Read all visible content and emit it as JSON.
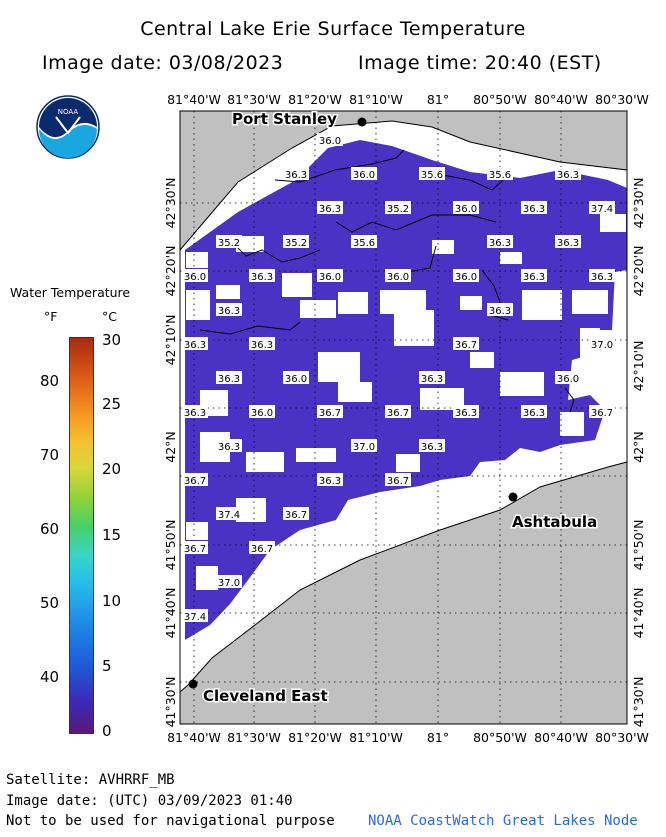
{
  "header": {
    "title": "Central Lake Erie Surface Temperature",
    "image_date": "Image date: 03/08/2023",
    "image_time": "Image time: 20:40 (EST)"
  },
  "logo": {
    "text": "NOAA"
  },
  "legend": {
    "title": "Water Temperature",
    "unit_f": "°F",
    "unit_c": "°C",
    "f_ticks": [
      "80",
      "70",
      "60",
      "50",
      "40"
    ],
    "c_ticks": [
      "30",
      "25",
      "20",
      "15",
      "10",
      "5",
      "0"
    ]
  },
  "map": {
    "lon_labels": [
      "81°40'W",
      "81°30'W",
      "81°20'W",
      "81°10'W",
      "81°",
      "80°50'W",
      "80°40'W",
      "80°30'W"
    ],
    "lat_labels": [
      "42°30'N",
      "42°20'N",
      "42°10'N",
      "42°N",
      "41°50'N",
      "41°40'N",
      "41°30'N"
    ],
    "cities": [
      "Port Stanley",
      "Ashtabula",
      "Cleveland East"
    ],
    "temperature_labels": [
      "36.0",
      "36.3",
      "36.0",
      "35.6",
      "35.6",
      "36.3",
      "36.3",
      "35.2",
      "36.0",
      "36.3",
      "37.4",
      "35.2",
      "35.2",
      "35.6",
      "36.3",
      "36.3",
      "36.0",
      "36.3",
      "36.0",
      "36.0",
      "36.0",
      "36.3",
      "36.3",
      "36.3",
      "36.3",
      "36.3",
      "36.3",
      "36.7",
      "37.0",
      "36.3",
      "36.0",
      "36.3",
      "36.0",
      "36.3",
      "36.0",
      "36.7",
      "36.7",
      "36.3",
      "36.3",
      "36.7",
      "36.3",
      "37.0",
      "36.3",
      "36.7",
      "36.3",
      "36.7",
      "37.4",
      "36.7",
      "36.7",
      "36.7",
      "37.0",
      "37.4"
    ]
  },
  "footer": {
    "satellite": "Satellite: AVHRRF_MB",
    "utc": "Image date: (UTC) 03/09/2023  01:40",
    "disclaimer": "Not to be used for navigational purpose",
    "credit": "NOAA CoastWatch Great Lakes Node"
  }
}
